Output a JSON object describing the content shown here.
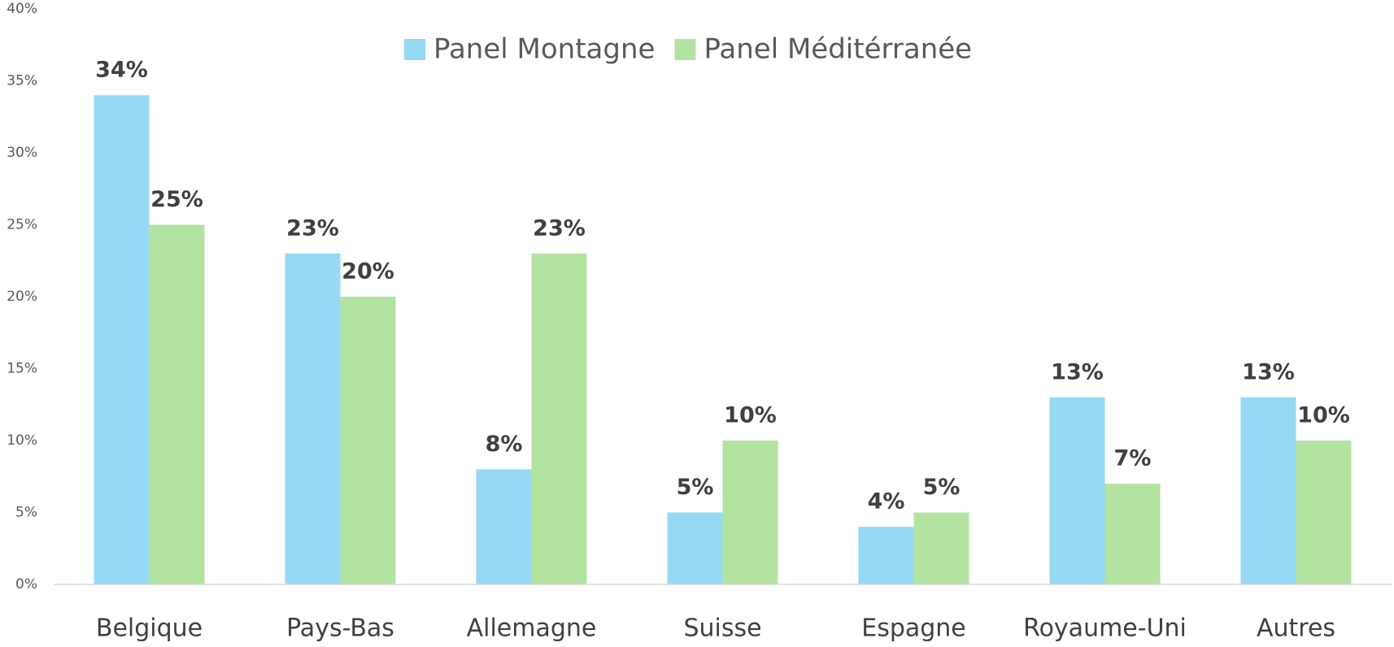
{
  "chart_data": {
    "type": "bar",
    "categories": [
      "Belgique",
      "Pays-Bas",
      "Allemagne",
      "Suisse",
      "Espagne",
      "Royaume-Uni",
      "Autres"
    ],
    "series": [
      {
        "name": "Panel Montagne",
        "color": "#97d9f5",
        "values": [
          34,
          23,
          8,
          5,
          4,
          13,
          13
        ],
        "value_labels": [
          "34%",
          "23%",
          "8%",
          "5%",
          "4%",
          "13%",
          "13%"
        ]
      },
      {
        "name": "Panel Méditérranée",
        "color": "#b3e3a0",
        "values": [
          25,
          20,
          23,
          10,
          5,
          7,
          10
        ],
        "value_labels": [
          "25%",
          "20%",
          "23%",
          "10%",
          "5%",
          "7%",
          "10%"
        ]
      }
    ],
    "ylim": [
      0,
      40
    ],
    "yticks": [
      {
        "value": 0,
        "label": "0%"
      },
      {
        "value": 5,
        "label": "5%"
      },
      {
        "value": 10,
        "label": "10%"
      },
      {
        "value": 15,
        "label": "15%"
      },
      {
        "value": 20,
        "label": "20%"
      },
      {
        "value": 25,
        "label": "25%"
      },
      {
        "value": 30,
        "label": "30%"
      },
      {
        "value": 35,
        "label": "35%"
      },
      {
        "value": 40,
        "label": "40%"
      }
    ],
    "legend": "top",
    "grid": false
  }
}
